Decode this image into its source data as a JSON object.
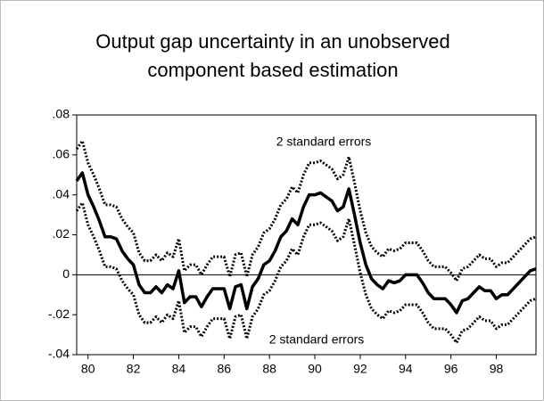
{
  "chart_data": {
    "type": "line",
    "title": [
      "Output gap uncertainty in an unobserved",
      "component based estimation"
    ],
    "annotations": [
      "2 standard errors",
      "2 standard errors"
    ],
    "x": [
      79.5,
      79.75,
      80,
      80.25,
      80.5,
      80.75,
      81,
      81.25,
      81.5,
      81.75,
      82,
      82.25,
      82.5,
      82.75,
      83,
      83.25,
      83.5,
      83.75,
      84,
      84.25,
      84.5,
      84.75,
      85,
      85.25,
      85.5,
      85.75,
      86,
      86.25,
      86.5,
      86.75,
      87,
      87.25,
      87.5,
      87.75,
      88,
      88.25,
      88.5,
      88.75,
      89,
      89.25,
      89.5,
      89.75,
      90,
      90.25,
      90.5,
      90.75,
      91,
      91.25,
      91.5,
      91.75,
      92,
      92.25,
      92.5,
      92.75,
      93,
      93.25,
      93.5,
      93.75,
      94,
      94.25,
      94.5,
      94.75,
      95,
      95.25,
      95.5,
      95.75,
      96,
      96.25,
      96.5,
      96.75,
      97,
      97.25,
      97.5,
      97.75,
      98,
      98.25,
      98.5,
      98.75,
      99,
      99.25,
      99.5,
      99.75
    ],
    "series": [
      {
        "color": "#000000",
        "dash": false,
        "values": [
          0.047,
          0.051,
          0.04,
          0.034,
          0.027,
          0.019,
          0.019,
          0.018,
          0.012,
          0.008,
          0.005,
          -0.005,
          -0.009,
          -0.009,
          -0.006,
          -0.009,
          -0.005,
          -0.007,
          0.002,
          -0.014,
          -0.011,
          -0.011,
          -0.016,
          -0.011,
          -0.007,
          -0.007,
          -0.007,
          -0.017,
          -0.006,
          -0.005,
          -0.017,
          -0.006,
          -0.002,
          0.005,
          0.007,
          0.012,
          0.019,
          0.022,
          0.028,
          0.025,
          0.034,
          0.04,
          0.04,
          0.041,
          0.039,
          0.037,
          0.032,
          0.034,
          0.043,
          0.03,
          0.016,
          0.005,
          -0.002,
          -0.005,
          -0.007,
          -0.003,
          -0.004,
          -0.003,
          0,
          0,
          0,
          -0.004,
          -0.009,
          -0.012,
          -0.012,
          -0.012,
          -0.015,
          -0.019,
          -0.013,
          -0.012,
          -0.009,
          -0.006,
          -0.008,
          -0.008,
          -0.012,
          -0.01,
          -0.01,
          -0.007,
          -0.004,
          -0.001,
          0.002,
          0.003
        ]
      },
      {
        "color": "#000000",
        "dash": true,
        "values": [
          0.063,
          0.067,
          0.056,
          0.05,
          0.043,
          0.035,
          0.035,
          0.034,
          0.028,
          0.024,
          0.021,
          0.011,
          0.007,
          0.007,
          0.01,
          0.007,
          0.011,
          0.009,
          0.018,
          0.002,
          0.005,
          0.005,
          0.0,
          0.005,
          0.009,
          0.009,
          0.009,
          -0.001,
          0.01,
          0.011,
          -0.001,
          0.01,
          0.014,
          0.021,
          0.023,
          0.028,
          0.035,
          0.038,
          0.044,
          0.041,
          0.05,
          0.056,
          0.056,
          0.057,
          0.055,
          0.053,
          0.048,
          0.05,
          0.059,
          0.046,
          0.032,
          0.021,
          0.014,
          0.011,
          0.009,
          0.013,
          0.012,
          0.013,
          0.016,
          0.016,
          0.016,
          0.012,
          0.007,
          0.004,
          0.004,
          0.004,
          0.001,
          -0.003,
          0.003,
          0.004,
          0.007,
          0.01,
          0.008,
          0.008,
          0.004,
          0.006,
          0.006,
          0.009,
          0.012,
          0.015,
          0.018,
          0.019
        ]
      },
      {
        "color": "#000000",
        "dash": true,
        "values": [
          0.032,
          0.036,
          0.025,
          0.019,
          0.012,
          0.004,
          0.004,
          0.003,
          -0.003,
          -0.007,
          -0.01,
          -0.02,
          -0.024,
          -0.024,
          -0.021,
          -0.024,
          -0.02,
          -0.022,
          -0.013,
          -0.029,
          -0.026,
          -0.026,
          -0.031,
          -0.026,
          -0.022,
          -0.022,
          -0.022,
          -0.032,
          -0.021,
          -0.02,
          -0.032,
          -0.021,
          -0.017,
          -0.01,
          -0.008,
          -0.003,
          0.004,
          0.007,
          0.013,
          0.01,
          0.019,
          0.025,
          0.025,
          0.026,
          0.024,
          0.022,
          0.017,
          0.019,
          0.028,
          0.015,
          0.001,
          -0.01,
          -0.017,
          -0.02,
          -0.022,
          -0.018,
          -0.019,
          -0.018,
          -0.015,
          -0.015,
          -0.015,
          -0.019,
          -0.024,
          -0.027,
          -0.027,
          -0.027,
          -0.03,
          -0.034,
          -0.028,
          -0.027,
          -0.024,
          -0.021,
          -0.023,
          -0.023,
          -0.027,
          -0.025,
          -0.025,
          -0.022,
          -0.019,
          -0.016,
          -0.013,
          -0.012
        ]
      }
    ],
    "xlim": [
      79.5,
      99.75
    ],
    "xticks": [
      80,
      82,
      84,
      86,
      88,
      90,
      92,
      94,
      96,
      98
    ],
    "ylim": [
      -0.04,
      0.08
    ],
    "yticks": [
      {
        "value": -0.04,
        "label": "-.04"
      },
      {
        "value": -0.02,
        "label": "-.02"
      },
      0,
      {
        "value": 0.02,
        "label": ".02"
      },
      {
        "value": 0.04,
        "label": ".04"
      },
      {
        "value": 0.06,
        "label": ".06"
      },
      {
        "value": 0.08,
        "label": ".08"
      }
    ],
    "zero_line": true,
    "grid": false
  }
}
